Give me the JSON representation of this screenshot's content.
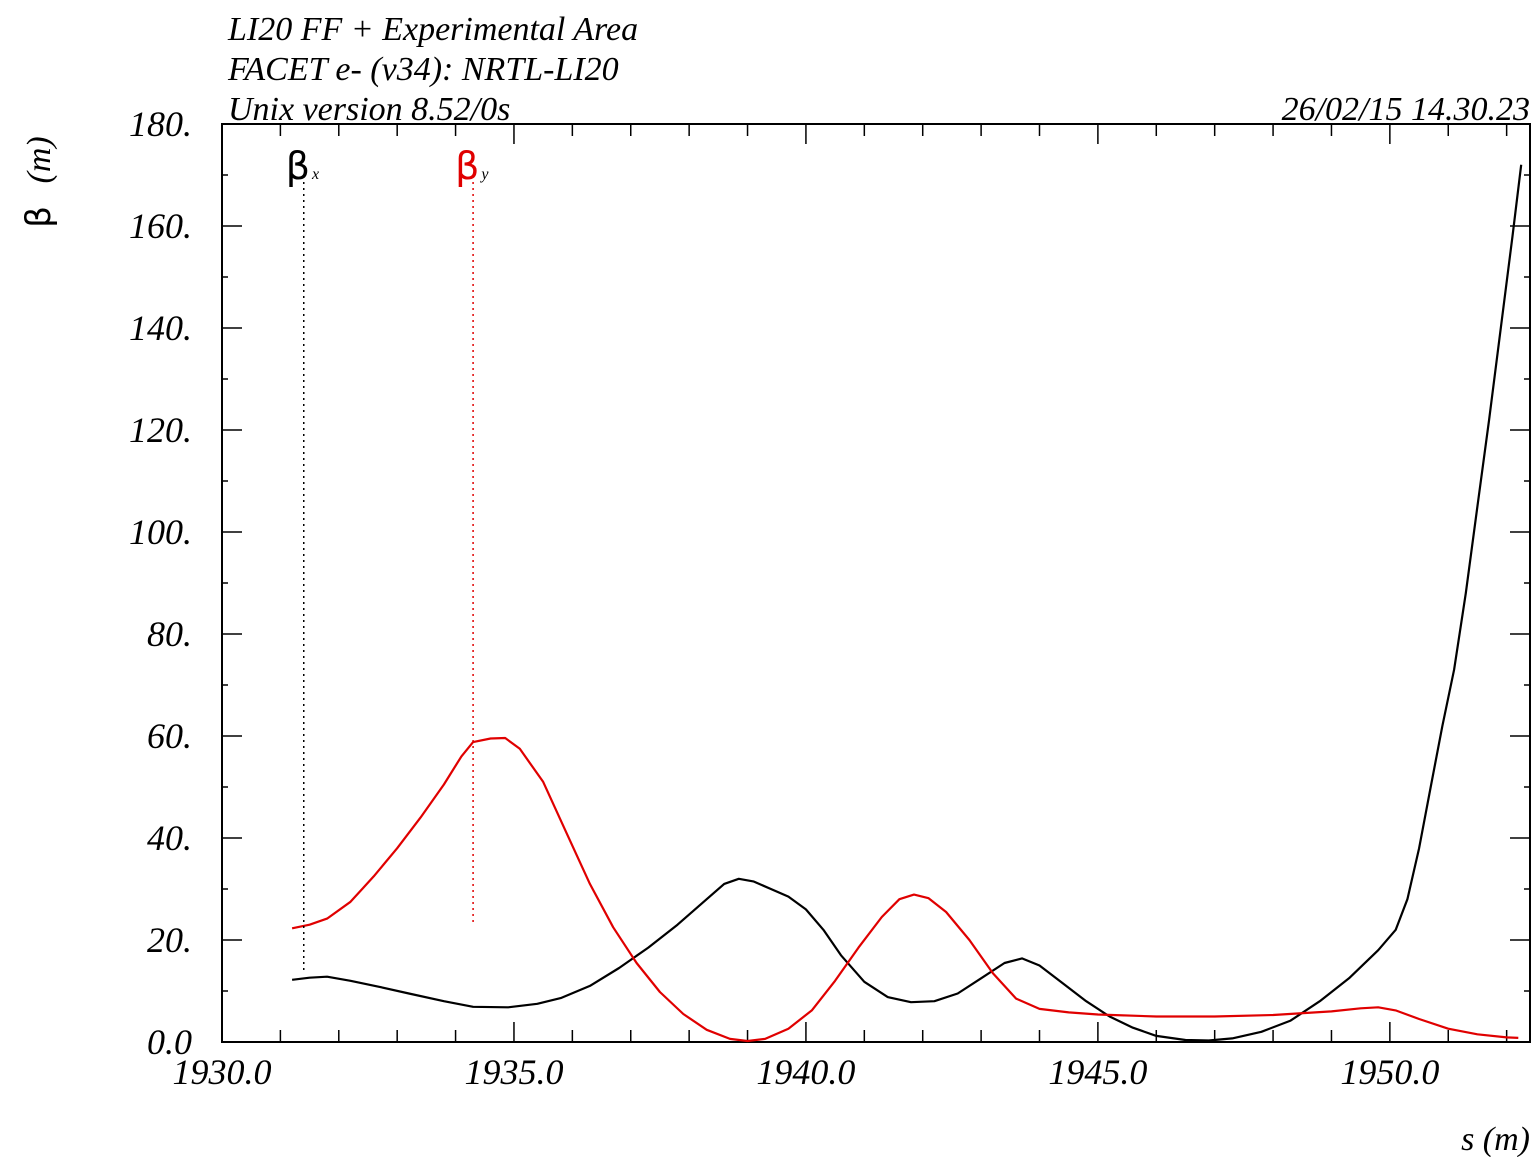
{
  "header": {
    "line1": "LI20 FF + Experimental Area",
    "line2": "FACET e- (v34): NRTL-LI20",
    "line3": "Unix version 8.52/0s",
    "timestamp": "26/02/15  14.30.23"
  },
  "chart_data": {
    "type": "line",
    "xlabel": "s (m)",
    "ylabel_symbol": "β",
    "ylabel_unit": "(m)",
    "xlim": [
      1930.0,
      1952.4
    ],
    "ylim": [
      0,
      180
    ],
    "x_tick_labels": [
      "1930.0",
      "1935.0",
      "1940.0",
      "1945.0",
      "1950.0"
    ],
    "x_ticks": [
      1930,
      1935,
      1940,
      1945,
      1950
    ],
    "y_tick_labels": [
      "0.0",
      "20.",
      "40.",
      "60.",
      "80.",
      "100.",
      "120.",
      "140.",
      "160.",
      "180."
    ],
    "y_ticks": [
      0,
      20,
      40,
      60,
      80,
      100,
      120,
      140,
      160,
      180
    ],
    "grid": false,
    "series": [
      {
        "name": "βx",
        "symbol": "β",
        "subscript": "x",
        "color": "#000000",
        "marker_x": 1931.4,
        "points": [
          [
            1931.2,
            12.2
          ],
          [
            1931.5,
            12.6
          ],
          [
            1931.8,
            12.8
          ],
          [
            1932.2,
            12.0
          ],
          [
            1932.7,
            10.8
          ],
          [
            1933.2,
            9.5
          ],
          [
            1933.8,
            8.0
          ],
          [
            1934.3,
            6.9
          ],
          [
            1934.9,
            6.8
          ],
          [
            1935.4,
            7.5
          ],
          [
            1935.8,
            8.6
          ],
          [
            1936.3,
            11.0
          ],
          [
            1936.8,
            14.5
          ],
          [
            1937.3,
            18.5
          ],
          [
            1937.8,
            23.0
          ],
          [
            1938.3,
            28.0
          ],
          [
            1938.6,
            31.0
          ],
          [
            1938.85,
            32.0
          ],
          [
            1939.1,
            31.5
          ],
          [
            1939.4,
            30.0
          ],
          [
            1939.7,
            28.5
          ],
          [
            1940.0,
            26.0
          ],
          [
            1940.3,
            22.0
          ],
          [
            1940.6,
            17.0
          ],
          [
            1941.0,
            11.8
          ],
          [
            1941.4,
            8.8
          ],
          [
            1941.8,
            7.8
          ],
          [
            1942.2,
            8.0
          ],
          [
            1942.6,
            9.5
          ],
          [
            1943.0,
            12.5
          ],
          [
            1943.4,
            15.5
          ],
          [
            1943.7,
            16.4
          ],
          [
            1944.0,
            15.0
          ],
          [
            1944.4,
            11.5
          ],
          [
            1944.8,
            8.0
          ],
          [
            1945.2,
            5.0
          ],
          [
            1945.6,
            2.8
          ],
          [
            1946.0,
            1.2
          ],
          [
            1946.5,
            0.4
          ],
          [
            1946.9,
            0.3
          ],
          [
            1947.3,
            0.7
          ],
          [
            1947.8,
            2.0
          ],
          [
            1948.3,
            4.2
          ],
          [
            1948.8,
            8.0
          ],
          [
            1949.3,
            12.5
          ],
          [
            1949.8,
            18.0
          ],
          [
            1950.1,
            22.0
          ],
          [
            1950.3,
            28.0
          ],
          [
            1950.5,
            38.0
          ],
          [
            1950.7,
            50.0
          ],
          [
            1950.9,
            62.0
          ],
          [
            1951.1,
            73.0
          ],
          [
            1951.3,
            88.0
          ],
          [
            1951.5,
            105.0
          ],
          [
            1951.7,
            122.0
          ],
          [
            1951.9,
            140.0
          ],
          [
            1952.1,
            158.0
          ],
          [
            1952.25,
            172.0
          ]
        ]
      },
      {
        "name": "βy",
        "symbol": "β",
        "subscript": "y",
        "color": "#e00000",
        "marker_x": 1934.3,
        "points": [
          [
            1931.2,
            22.3
          ],
          [
            1931.5,
            23.0
          ],
          [
            1931.8,
            24.2
          ],
          [
            1932.2,
            27.5
          ],
          [
            1932.6,
            32.5
          ],
          [
            1933.0,
            38.0
          ],
          [
            1933.4,
            44.0
          ],
          [
            1933.8,
            50.5
          ],
          [
            1934.1,
            56.0
          ],
          [
            1934.3,
            58.8
          ],
          [
            1934.6,
            59.5
          ],
          [
            1934.85,
            59.6
          ],
          [
            1935.1,
            57.5
          ],
          [
            1935.5,
            51.0
          ],
          [
            1935.9,
            41.0
          ],
          [
            1936.3,
            31.0
          ],
          [
            1936.7,
            22.5
          ],
          [
            1937.1,
            15.5
          ],
          [
            1937.5,
            9.8
          ],
          [
            1937.9,
            5.5
          ],
          [
            1938.3,
            2.4
          ],
          [
            1938.7,
            0.6
          ],
          [
            1939.0,
            0.2
          ],
          [
            1939.3,
            0.6
          ],
          [
            1939.7,
            2.6
          ],
          [
            1940.1,
            6.2
          ],
          [
            1940.5,
            12.0
          ],
          [
            1940.9,
            18.5
          ],
          [
            1941.3,
            24.5
          ],
          [
            1941.6,
            28.0
          ],
          [
            1941.85,
            28.9
          ],
          [
            1942.1,
            28.2
          ],
          [
            1942.4,
            25.5
          ],
          [
            1942.8,
            20.0
          ],
          [
            1943.2,
            13.5
          ],
          [
            1943.6,
            8.5
          ],
          [
            1944.0,
            6.5
          ],
          [
            1944.5,
            5.8
          ],
          [
            1945.0,
            5.4
          ],
          [
            1946.0,
            5.0
          ],
          [
            1947.0,
            5.0
          ],
          [
            1948.0,
            5.3
          ],
          [
            1949.0,
            6.0
          ],
          [
            1949.5,
            6.6
          ],
          [
            1949.8,
            6.8
          ],
          [
            1950.1,
            6.2
          ],
          [
            1950.5,
            4.5
          ],
          [
            1951.0,
            2.6
          ],
          [
            1951.5,
            1.5
          ],
          [
            1952.0,
            0.9
          ],
          [
            1952.2,
            0.8
          ]
        ]
      }
    ]
  }
}
